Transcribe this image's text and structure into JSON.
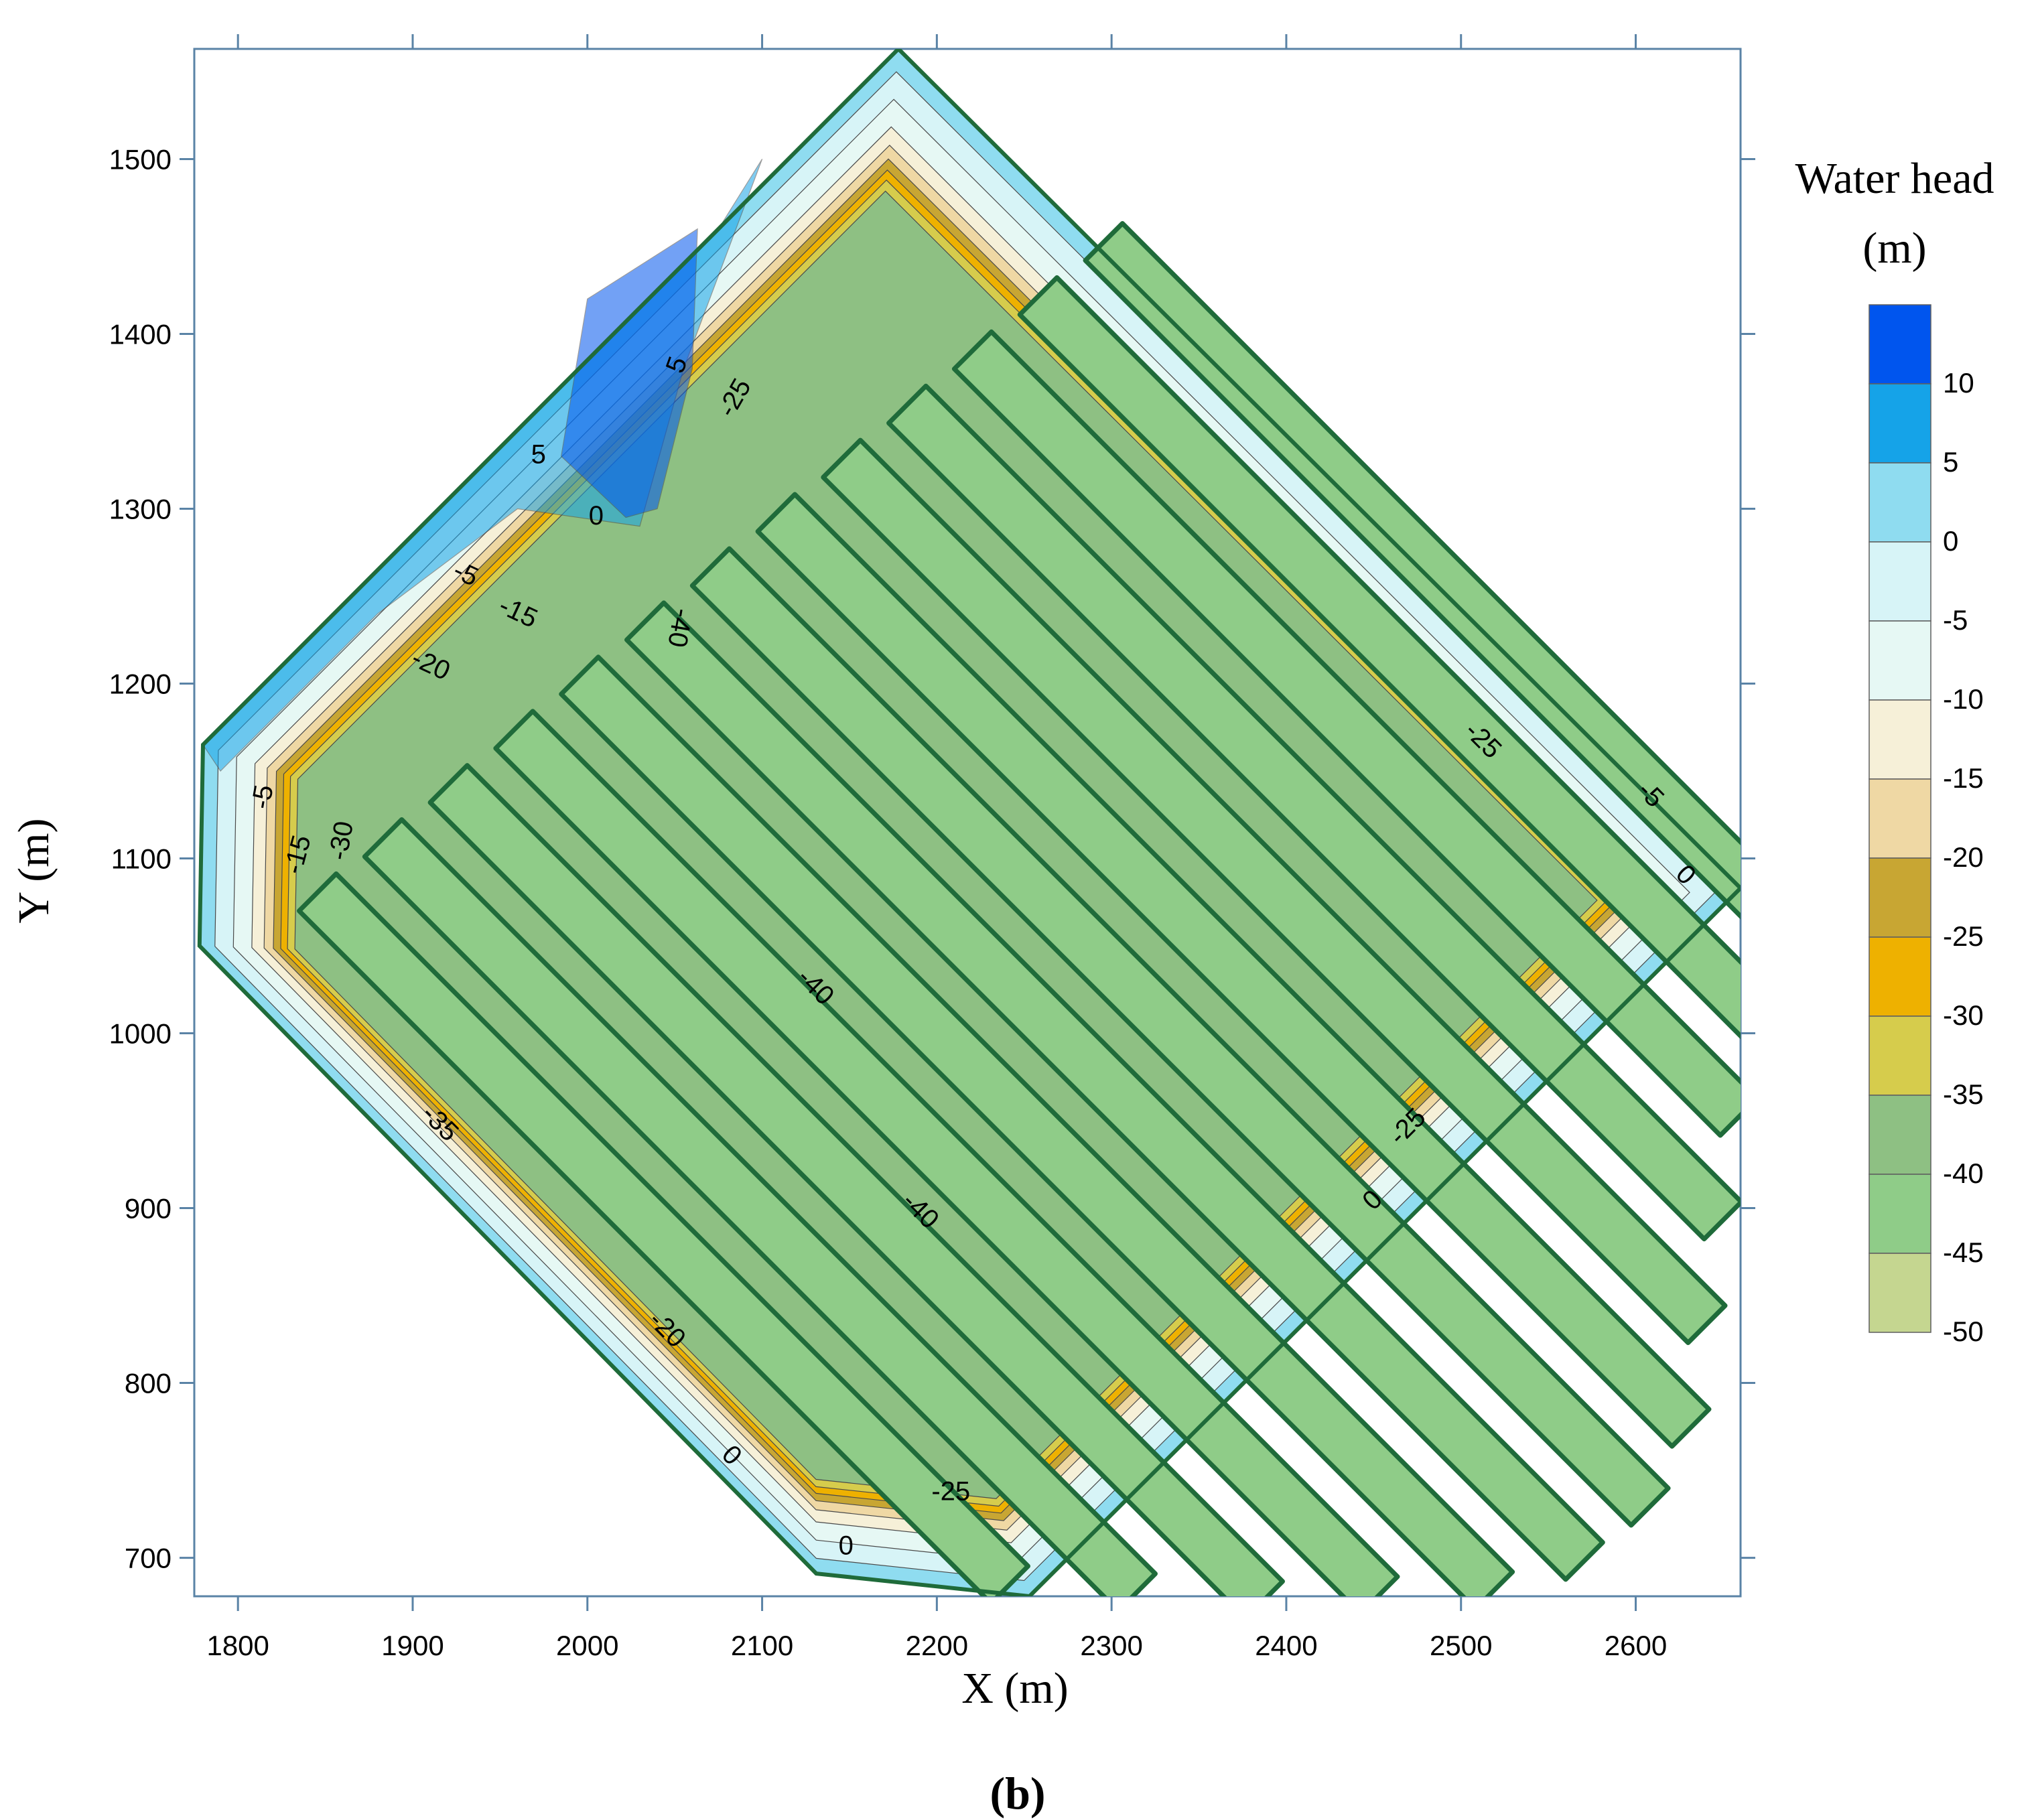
{
  "chart_data": {
    "type": "heatmap",
    "subtype": "filled-contour map",
    "xlabel": "X (m)",
    "ylabel": "Y (m)",
    "xlim": [
      1775,
      2660
    ],
    "ylim": [
      678,
      1563
    ],
    "xticks": [
      1800,
      1900,
      2000,
      2100,
      2200,
      2300,
      2400,
      2500,
      2600
    ],
    "yticks": [
      700,
      800,
      900,
      1000,
      1100,
      1200,
      1300,
      1400,
      1500
    ],
    "xtick_labels": [
      "1800",
      "1900",
      "2000",
      "2100",
      "2200",
      "2300",
      "2400",
      "2500",
      "2600"
    ],
    "ytick_labels": [
      "700",
      "800",
      "900",
      "1000",
      "1100",
      "1200",
      "1300",
      "1400",
      "1500"
    ],
    "grid": false,
    "colorbar": {
      "title_line1": "Water head",
      "title_line2": "(m)",
      "placement": "right",
      "levels": [
        {
          "label": "10",
          "color": "#0055ee"
        },
        {
          "label": "5",
          "color": "#15a3e8"
        },
        {
          "label": "0",
          "color": "#8fdcf0"
        },
        {
          "label": "-5",
          "color": "#d7f4f7"
        },
        {
          "label": "-10",
          "color": "#e6f8f4"
        },
        {
          "label": "-15",
          "color": "#f6f0d8"
        },
        {
          "label": "-20",
          "color": "#efd8a4"
        },
        {
          "label": "-25",
          "color": "#c8a633"
        },
        {
          "label": "-30",
          "color": "#eeb100"
        },
        {
          "label": "-35",
          "color": "#d6cc4c"
        },
        {
          "label": "-40",
          "color": "#8ec083"
        },
        {
          "label": "-45",
          "color": "#8fcc88"
        },
        {
          "label": "-50",
          "color": "#c5d690"
        }
      ]
    },
    "boundary_polygon": [
      [
        2178,
        1563
      ],
      [
        2660,
        1083
      ],
      [
        2253,
        678
      ],
      [
        2131,
        691
      ],
      [
        1778,
        1050
      ],
      [
        1780,
        1165
      ]
    ],
    "contour_labels": [
      {
        "text": "5",
        "x": 2052,
        "y": 1382,
        "angle": -70
      },
      {
        "text": "5",
        "x": 1972,
        "y": 1330,
        "angle": 0
      },
      {
        "text": "-25",
        "x": 2085,
        "y": 1363,
        "angle": -60
      },
      {
        "text": "0",
        "x": 2005,
        "y": 1295,
        "angle": 0
      },
      {
        "text": "-5",
        "x": 1930,
        "y": 1262,
        "angle": 25
      },
      {
        "text": "-15",
        "x": 1960,
        "y": 1240,
        "angle": 25
      },
      {
        "text": "-40",
        "x": 2052,
        "y": 1232,
        "angle": 100
      },
      {
        "text": "-20",
        "x": 1910,
        "y": 1210,
        "angle": 25
      },
      {
        "text": "-5",
        "x": 1815,
        "y": 1135,
        "angle": -80
      },
      {
        "text": "-15",
        "x": 1835,
        "y": 1102,
        "angle": -75
      },
      {
        "text": "-30",
        "x": 1860,
        "y": 1110,
        "angle": -80
      },
      {
        "text": "-35",
        "x": 1915,
        "y": 948,
        "angle": 45
      },
      {
        "text": "-40",
        "x": 2130,
        "y": 1026,
        "angle": 45
      },
      {
        "text": "-40",
        "x": 2190,
        "y": 898,
        "angle": 45
      },
      {
        "text": "-20",
        "x": 2045,
        "y": 830,
        "angle": 45
      },
      {
        "text": "0",
        "x": 2082,
        "y": 758,
        "angle": 45
      },
      {
        "text": "0",
        "x": 2148,
        "y": 706,
        "angle": 0
      },
      {
        "text": "-25",
        "x": 2208,
        "y": 737,
        "angle": 0
      },
      {
        "text": "-25",
        "x": 2512,
        "y": 1167,
        "angle": 45
      },
      {
        "text": "-5",
        "x": 2608,
        "y": 1136,
        "angle": 45
      },
      {
        "text": "0",
        "x": 2628,
        "y": 1090,
        "angle": 45
      },
      {
        "text": "-25",
        "x": 2470,
        "y": 946,
        "angle": -45
      },
      {
        "text": "0",
        "x": 2450,
        "y": 904,
        "angle": -45
      }
    ],
    "panel_label": "(b)"
  }
}
